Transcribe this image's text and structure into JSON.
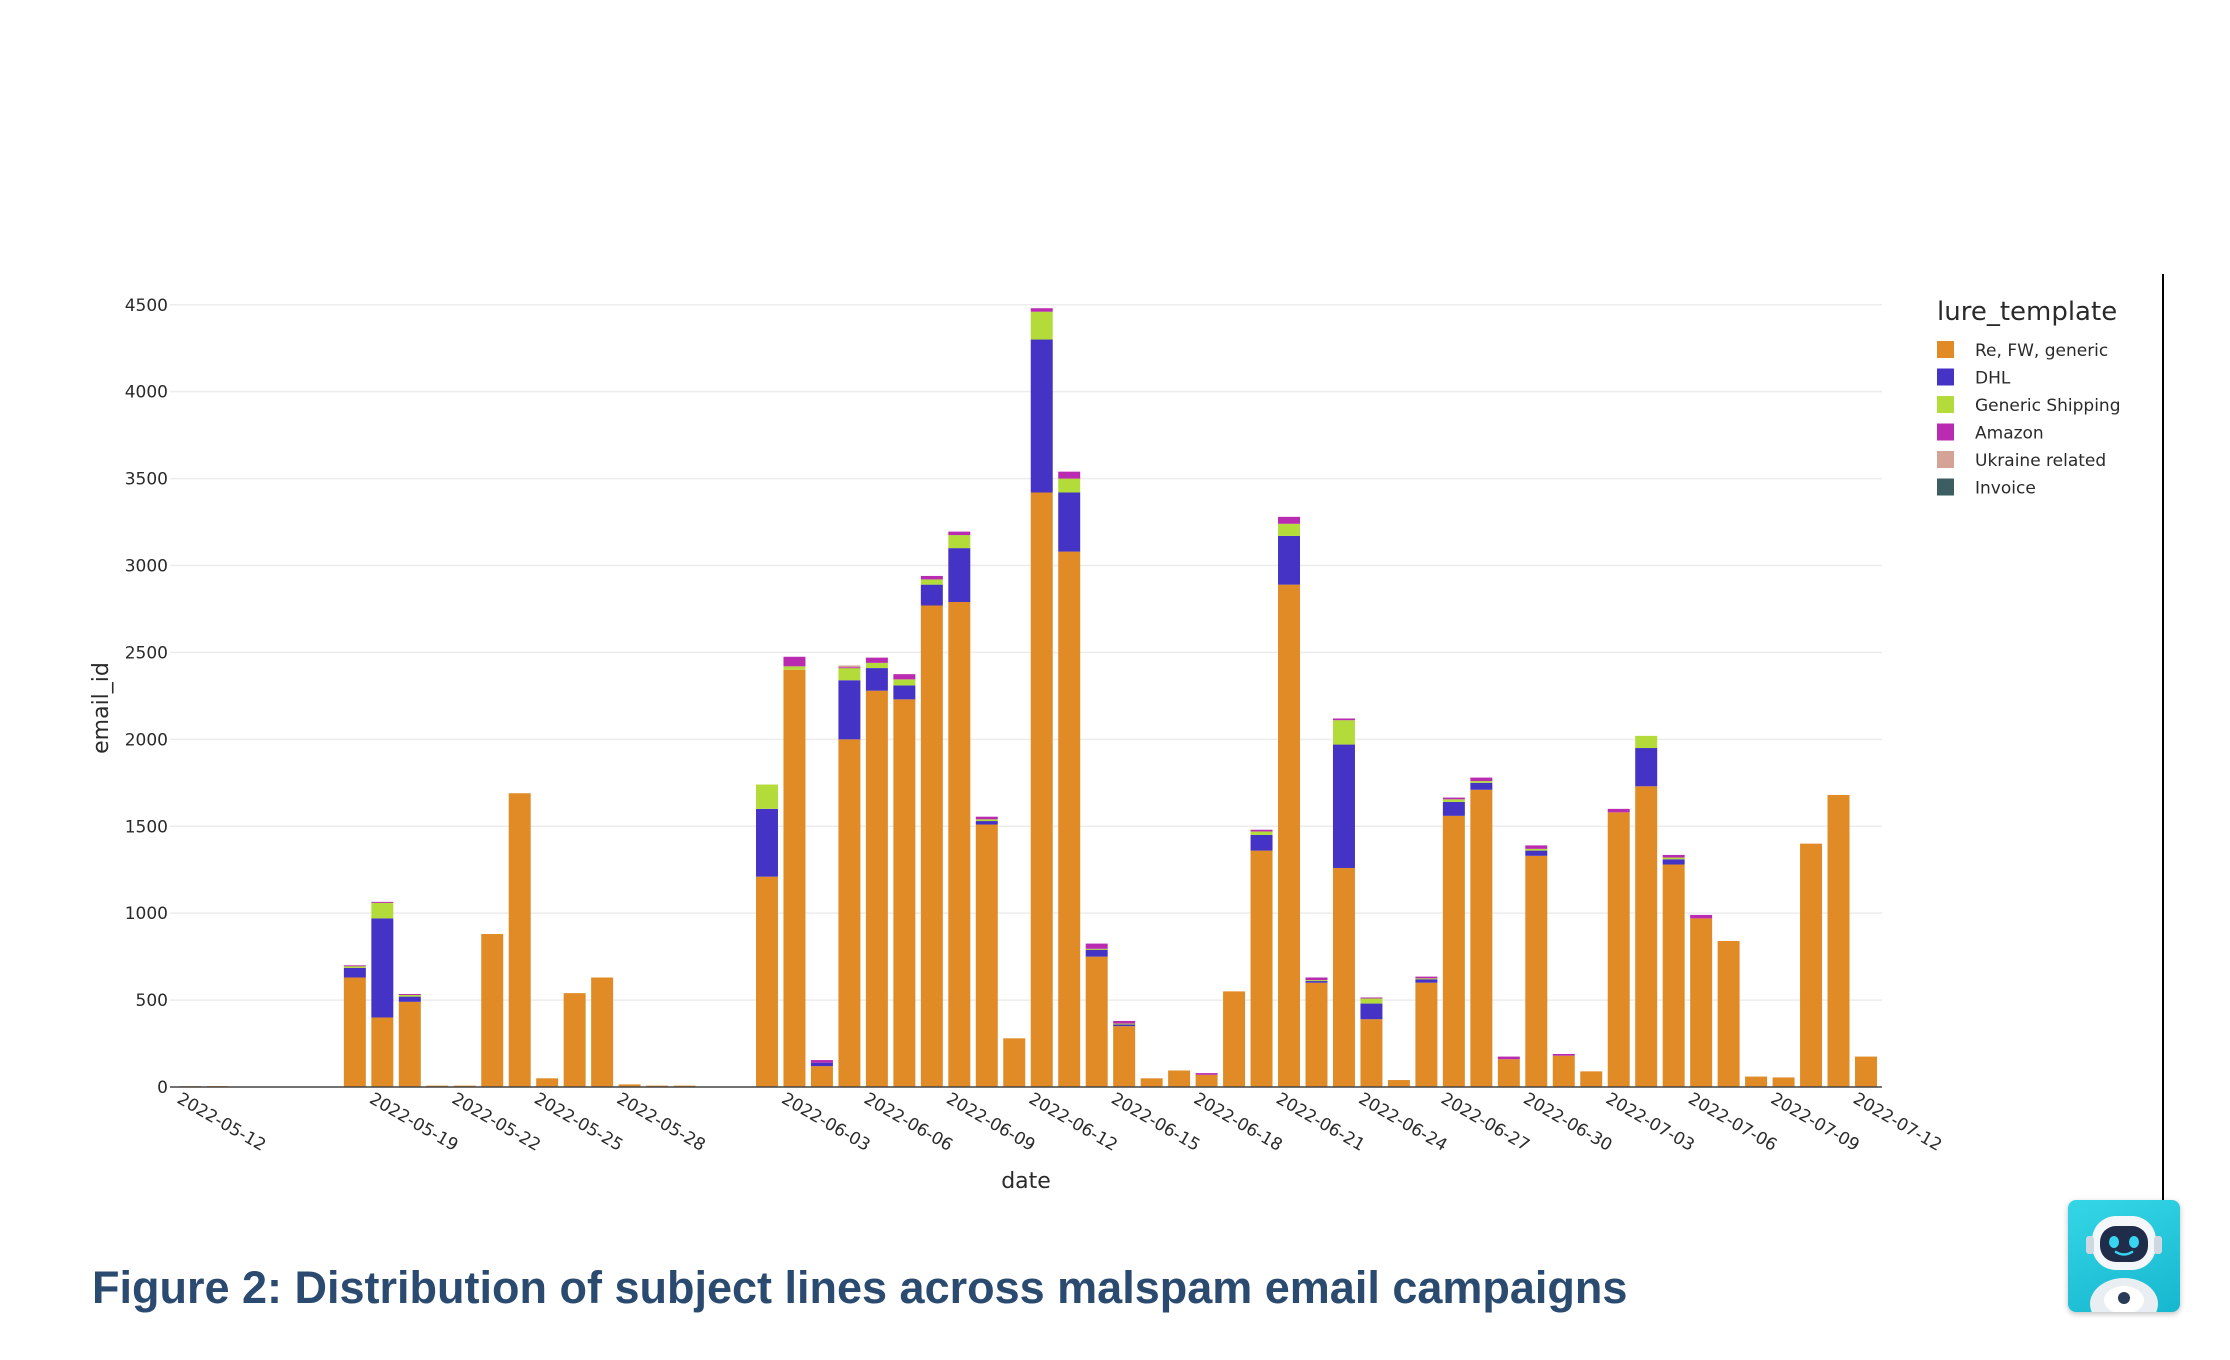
{
  "caption": "Figure 2: Distribution of subject lines across malspam email campaigns",
  "chart_data": {
    "type": "bar",
    "barmode": "stack",
    "xlabel": "date",
    "ylabel": "email_id",
    "ylim": [
      0,
      4700
    ],
    "yticks": [
      0,
      500,
      1000,
      1500,
      2000,
      2500,
      3000,
      3500,
      4000,
      4500
    ],
    "grid": true,
    "legend_title": "lure_template",
    "legend_position": "top-right",
    "x_tick_labels": [
      "2022-05-12",
      "2022-05-19",
      "2022-05-22",
      "2022-05-25",
      "2022-05-28",
      "2022-06-03",
      "2022-06-06",
      "2022-06-09",
      "2022-06-12",
      "2022-06-15",
      "2022-06-18",
      "2022-06-21",
      "2022-06-24",
      "2022-06-27",
      "2022-06-30",
      "2022-07-03",
      "2022-07-06",
      "2022-07-09",
      "2022-07-12"
    ],
    "categories": [
      "2022-05-12",
      "2022-05-13",
      "2022-05-18",
      "2022-05-19",
      "2022-05-20",
      "2022-05-21",
      "2022-05-22",
      "2022-05-23",
      "2022-05-24",
      "2022-05-25",
      "2022-05-26",
      "2022-05-27",
      "2022-05-28",
      "2022-05-29",
      "2022-05-30",
      "2022-06-02",
      "2022-06-03",
      "2022-06-04",
      "2022-06-05",
      "2022-06-06",
      "2022-06-07",
      "2022-06-08",
      "2022-06-09",
      "2022-06-10",
      "2022-06-11",
      "2022-06-12",
      "2022-06-13",
      "2022-06-14",
      "2022-06-15",
      "2022-06-16",
      "2022-06-17",
      "2022-06-18",
      "2022-06-19",
      "2022-06-20",
      "2022-06-21",
      "2022-06-22",
      "2022-06-23",
      "2022-06-24",
      "2022-06-25",
      "2022-06-26",
      "2022-06-27",
      "2022-06-28",
      "2022-06-29",
      "2022-06-30",
      "2022-07-01",
      "2022-07-02",
      "2022-07-03",
      "2022-07-04",
      "2022-07-05",
      "2022-07-06",
      "2022-07-07",
      "2022-07-08",
      "2022-07-09",
      "2022-07-10",
      "2022-07-11",
      "2022-07-12"
    ],
    "series": [
      {
        "name": "Re, FW, generic",
        "color": "#e08b25",
        "values": [
          5,
          5,
          630,
          400,
          490,
          8,
          8,
          880,
          1690,
          50,
          540,
          630,
          15,
          8,
          8,
          1210,
          2400,
          120,
          2000,
          2280,
          2230,
          2770,
          2790,
          1510,
          280,
          3420,
          3080,
          750,
          350,
          50,
          95,
          70,
          550,
          1360,
          2890,
          600,
          1260,
          390,
          40,
          600,
          1560,
          1710,
          160,
          1330,
          180,
          90,
          1580,
          1730,
          1280,
          970,
          840,
          60,
          55,
          1400,
          1680,
          175
        ]
      },
      {
        "name": "DHL",
        "color": "#4433c4",
        "values": [
          0,
          0,
          55,
          570,
          30,
          0,
          0,
          0,
          0,
          0,
          0,
          0,
          0,
          0,
          0,
          390,
          0,
          20,
          340,
          130,
          80,
          120,
          310,
          20,
          0,
          880,
          340,
          40,
          10,
          0,
          0,
          0,
          0,
          90,
          280,
          10,
          710,
          90,
          0,
          20,
          80,
          40,
          0,
          30,
          0,
          0,
          0,
          220,
          30,
          0,
          0,
          0,
          0,
          0,
          0,
          0
        ]
      },
      {
        "name": "Generic Shipping",
        "color": "#b3dc3a",
        "values": [
          0,
          0,
          10,
          90,
          10,
          0,
          0,
          0,
          0,
          0,
          0,
          0,
          0,
          0,
          0,
          140,
          20,
          0,
          70,
          30,
          35,
          30,
          75,
          10,
          0,
          160,
          80,
          5,
          5,
          0,
          0,
          0,
          0,
          20,
          70,
          5,
          140,
          30,
          0,
          5,
          15,
          10,
          0,
          10,
          0,
          0,
          0,
          70,
          10,
          0,
          0,
          0,
          0,
          0,
          0,
          0
        ]
      },
      {
        "name": "Amazon",
        "color": "#b92cb1",
        "values": [
          0,
          0,
          5,
          5,
          5,
          0,
          0,
          0,
          0,
          0,
          0,
          0,
          0,
          0,
          0,
          0,
          55,
          15,
          5,
          30,
          30,
          20,
          20,
          15,
          0,
          20,
          40,
          30,
          15,
          0,
          0,
          10,
          0,
          10,
          40,
          15,
          10,
          5,
          0,
          10,
          10,
          20,
          15,
          20,
          10,
          0,
          20,
          0,
          15,
          20,
          0,
          0,
          0,
          0,
          0,
          0
        ]
      },
      {
        "name": "Ukraine related",
        "color": "#d5a296",
        "values": [
          0,
          0,
          0,
          0,
          0,
          0,
          0,
          0,
          0,
          0,
          0,
          0,
          0,
          0,
          0,
          0,
          0,
          0,
          10,
          0,
          0,
          0,
          0,
          0,
          0,
          0,
          0,
          0,
          0,
          0,
          0,
          0,
          0,
          0,
          0,
          0,
          0,
          0,
          0,
          0,
          0,
          0,
          0,
          0,
          0,
          0,
          0,
          0,
          0,
          0,
          0,
          0,
          0,
          0,
          0,
          0
        ]
      },
      {
        "name": "Invoice",
        "color": "#3c5d62",
        "values": [
          0,
          0,
          0,
          0,
          0,
          0,
          0,
          0,
          0,
          0,
          0,
          0,
          0,
          0,
          0,
          0,
          0,
          0,
          0,
          0,
          0,
          0,
          0,
          0,
          0,
          0,
          0,
          0,
          0,
          0,
          0,
          0,
          0,
          0,
          0,
          0,
          0,
          0,
          0,
          0,
          0,
          0,
          0,
          0,
          0,
          0,
          0,
          0,
          0,
          0,
          0,
          0,
          0,
          0,
          0,
          0
        ]
      }
    ]
  },
  "assistant_widget": {
    "icon": "robot-icon"
  }
}
